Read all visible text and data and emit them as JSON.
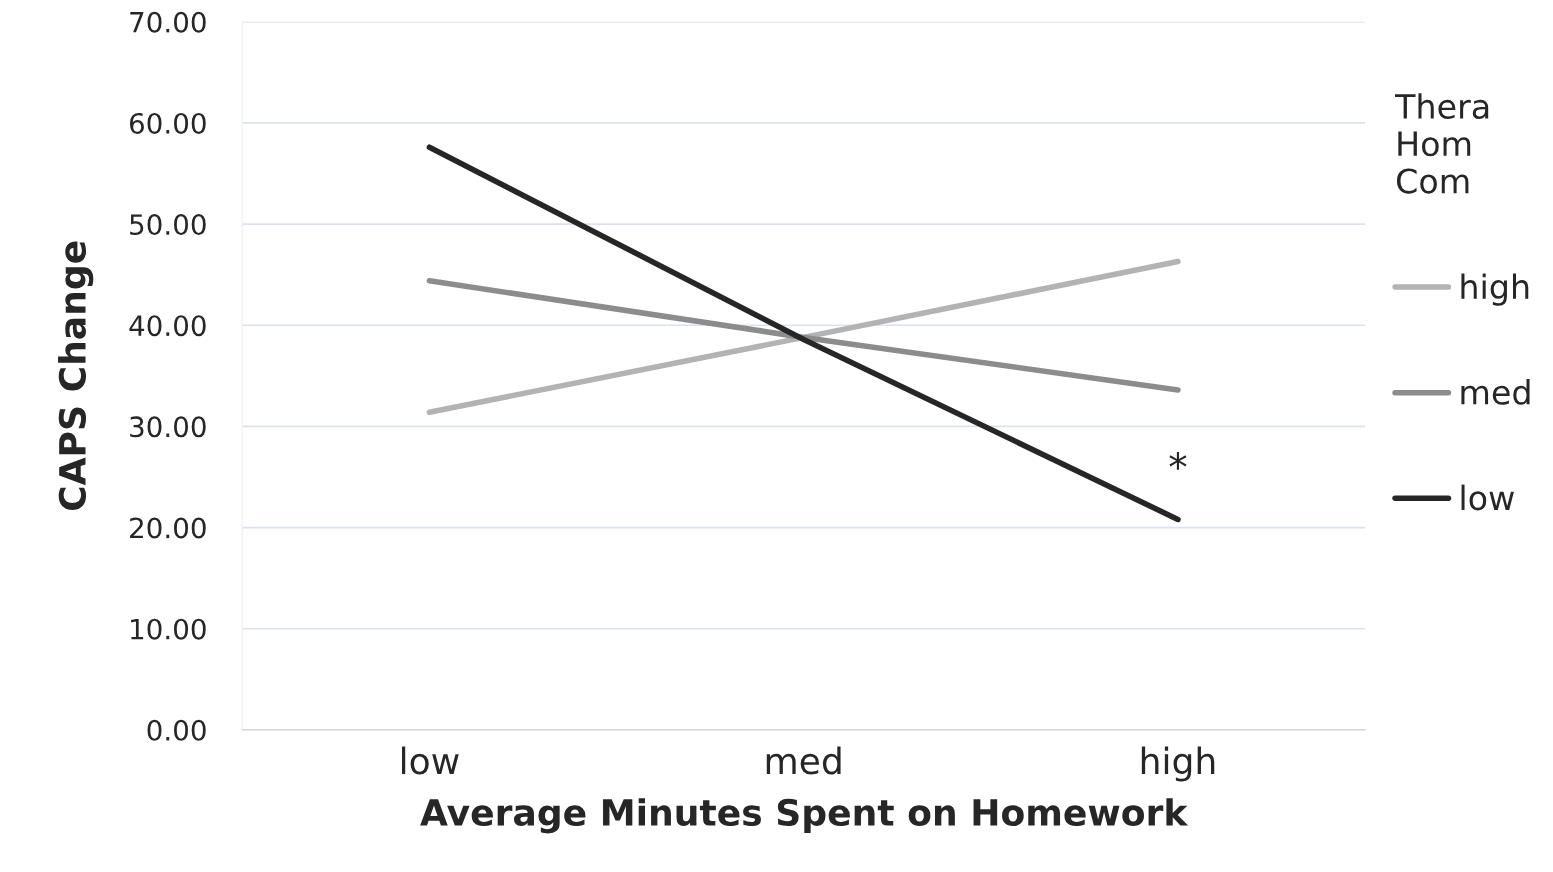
{
  "chart_data": {
    "type": "line",
    "xlabel": "Average Minutes Spent on Homework",
    "ylabel": "CAPS Change",
    "legend_title": "Thera\nHom\nCom",
    "categories": [
      "low",
      "med",
      "high"
    ],
    "series": [
      {
        "name": "high",
        "color": "#b3b3b3",
        "values": [
          31.4,
          38.8,
          46.3
        ]
      },
      {
        "name": "med",
        "color": "#8c8c8c",
        "values": [
          44.4,
          38.8,
          33.6
        ]
      },
      {
        "name": "low",
        "color": "#262626",
        "values": [
          57.6,
          38.6,
          20.8
        ]
      }
    ],
    "ylim": [
      0,
      70
    ],
    "yticks": [
      {
        "value": 0,
        "label": "0.00"
      },
      {
        "value": 10,
        "label": "10.00"
      },
      {
        "value": 20,
        "label": "20.00"
      },
      {
        "value": 30,
        "label": "30.00"
      },
      {
        "value": 40,
        "label": "40.00"
      },
      {
        "value": 50,
        "label": "50.00"
      },
      {
        "value": 60,
        "label": "60.00"
      },
      {
        "value": 70,
        "label": "70.00"
      }
    ],
    "grid": "y",
    "legend": "right",
    "marker": "none",
    "line_style": "solid",
    "annotations": [
      "*"
    ]
  }
}
